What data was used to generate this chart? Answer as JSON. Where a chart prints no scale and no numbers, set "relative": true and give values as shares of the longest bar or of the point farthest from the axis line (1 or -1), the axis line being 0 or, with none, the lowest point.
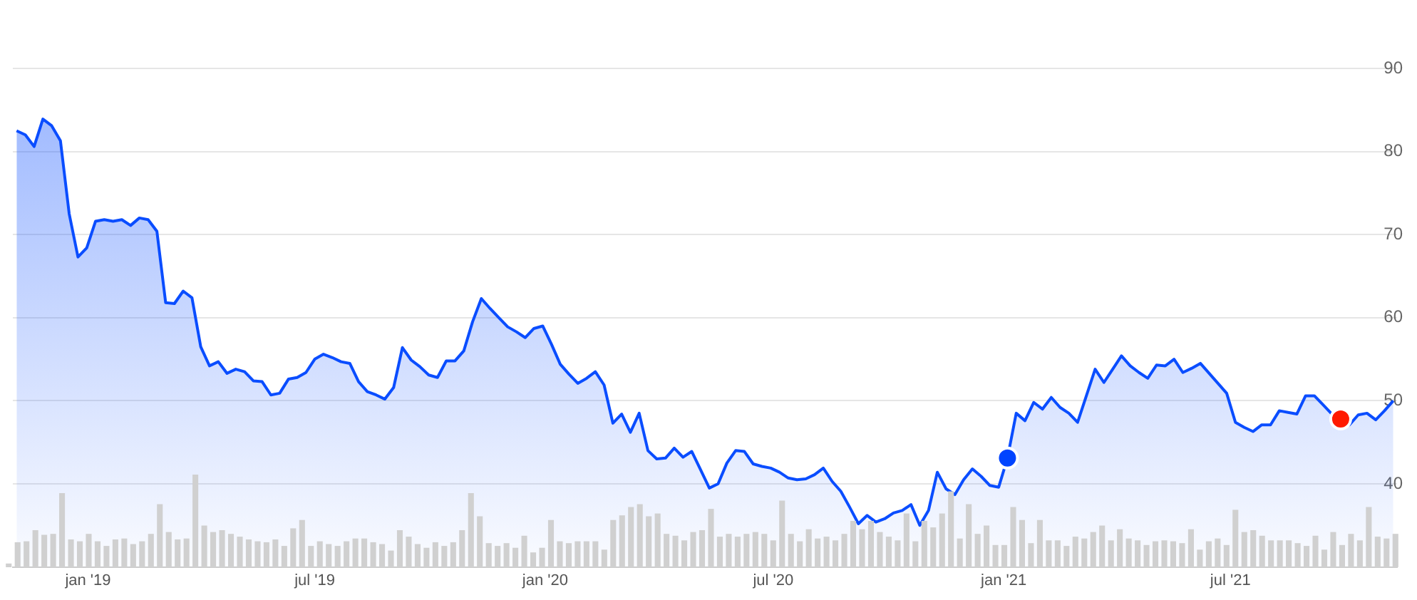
{
  "chart_data": [
    {
      "type": "area",
      "x": [
        "2018-11-05",
        "2018-11-12",
        "2018-11-19",
        "2018-11-26",
        "2018-12-03",
        "2018-12-10",
        "2018-12-17",
        "2018-12-24",
        "2018-12-31",
        "2019-01-07",
        "2019-01-14",
        "2019-01-21",
        "2019-01-28",
        "2019-02-04",
        "2019-02-11",
        "2019-02-18",
        "2019-02-25",
        "2019-03-04",
        "2019-03-11",
        "2019-03-18",
        "2019-03-25",
        "2019-04-01",
        "2019-04-08",
        "2019-04-15",
        "2019-04-22",
        "2019-04-29",
        "2019-05-06",
        "2019-05-13",
        "2019-05-20",
        "2019-05-27",
        "2019-06-03",
        "2019-06-10",
        "2019-06-17",
        "2019-06-24",
        "2019-07-01",
        "2019-07-08",
        "2019-07-15",
        "2019-07-22",
        "2019-07-29",
        "2019-08-05",
        "2019-08-12",
        "2019-08-19",
        "2019-08-26",
        "2019-09-02",
        "2019-09-09",
        "2019-09-16",
        "2019-09-23",
        "2019-09-30",
        "2019-10-07",
        "2019-10-14",
        "2019-10-21",
        "2019-10-28",
        "2019-11-04",
        "2019-11-11",
        "2019-11-18",
        "2019-11-25",
        "2019-12-02",
        "2019-12-09",
        "2019-12-16",
        "2019-12-23",
        "2019-12-30",
        "2020-01-06",
        "2020-01-13",
        "2020-01-20",
        "2020-01-27",
        "2020-02-03",
        "2020-02-10",
        "2020-02-17",
        "2020-02-24",
        "2020-03-02",
        "2020-03-09",
        "2020-03-16",
        "2020-03-23",
        "2020-03-30",
        "2020-04-06",
        "2020-04-13",
        "2020-04-20",
        "2020-04-27",
        "2020-05-04",
        "2020-05-11",
        "2020-05-18",
        "2020-05-25",
        "2020-06-01",
        "2020-06-08",
        "2020-06-15",
        "2020-06-22",
        "2020-06-29",
        "2020-07-06",
        "2020-07-13",
        "2020-07-20",
        "2020-07-27",
        "2020-08-03",
        "2020-08-10",
        "2020-08-17",
        "2020-08-24",
        "2020-08-31",
        "2020-09-07",
        "2020-09-14",
        "2020-09-21",
        "2020-09-28",
        "2020-10-05",
        "2020-10-12",
        "2020-10-19",
        "2020-10-26",
        "2020-11-02",
        "2020-11-09",
        "2020-11-16",
        "2020-11-23",
        "2020-11-30",
        "2020-12-07",
        "2020-12-14",
        "2020-12-21",
        "2020-12-28",
        "2021-01-04",
        "2021-01-11",
        "2021-01-18",
        "2021-01-25",
        "2021-02-01",
        "2021-02-08",
        "2021-02-15",
        "2021-02-22",
        "2021-03-01",
        "2021-03-08",
        "2021-03-15",
        "2021-03-22",
        "2021-03-29",
        "2021-04-05",
        "2021-04-12",
        "2021-04-19",
        "2021-04-26",
        "2021-05-03",
        "2021-05-10",
        "2021-05-17",
        "2021-05-24",
        "2021-05-31",
        "2021-06-07",
        "2021-06-14",
        "2021-06-21",
        "2021-06-28",
        "2021-07-05",
        "2021-07-12",
        "2021-07-19",
        "2021-07-26",
        "2021-08-02",
        "2021-08-09",
        "2021-08-16",
        "2021-08-23",
        "2021-08-30",
        "2021-09-06",
        "2021-09-13",
        "2021-09-20",
        "2021-09-27",
        "2021-10-04",
        "2021-10-11",
        "2021-10-18",
        "2021-10-25",
        "2021-11-01",
        "2021-11-08"
      ],
      "series": [
        {
          "color": "#0a4dff",
          "values": [
            82.5,
            82.0,
            80.6,
            83.9,
            83.1,
            81.3,
            72.5,
            67.3,
            68.4,
            71.6,
            71.8,
            71.6,
            71.8,
            71.1,
            72.0,
            71.8,
            70.4,
            61.8,
            61.7,
            63.2,
            62.4,
            56.5,
            54.2,
            54.7,
            53.3,
            53.8,
            53.5,
            52.4,
            52.3,
            50.7,
            50.9,
            52.6,
            52.8,
            53.4,
            55.0,
            55.6,
            55.2,
            54.7,
            54.5,
            52.3,
            51.1,
            50.7,
            50.2,
            51.6,
            56.4,
            54.9,
            54.1,
            53.1,
            52.8,
            54.8,
            54.8,
            56.0,
            59.5,
            62.3,
            61.1,
            60.0,
            58.9,
            58.3,
            57.6,
            58.7,
            59.0,
            56.8,
            54.4,
            53.2,
            52.1,
            52.7,
            53.5,
            51.9,
            47.3,
            48.4,
            46.2,
            48.5,
            44.0,
            43.0,
            43.1,
            44.3,
            43.2,
            43.9,
            41.7,
            39.5,
            40.0,
            42.5,
            44.0,
            43.9,
            42.4,
            42.1,
            41.9,
            41.4,
            40.7,
            40.5,
            40.6,
            41.1,
            41.9,
            40.3,
            39.1,
            37.2,
            35.2,
            36.2,
            35.4,
            35.8,
            36.5,
            36.8,
            37.5,
            35.0,
            36.8,
            41.4,
            39.4,
            38.7,
            40.5,
            41.8,
            40.9,
            39.8,
            39.6,
            43.1,
            48.5,
            47.6,
            49.8,
            49.0,
            50.4,
            49.2,
            48.5,
            47.4,
            50.6,
            53.8,
            52.2,
            53.8,
            55.4,
            54.2,
            53.4,
            52.7,
            54.3,
            54.2,
            55.0,
            53.4,
            53.9,
            54.5,
            53.3,
            52.1,
            50.9,
            47.4,
            46.8,
            46.3,
            47.1,
            47.1,
            48.8,
            48.6,
            48.4,
            50.6,
            50.6,
            49.5,
            48.4,
            47.8,
            47.1,
            48.3,
            48.5,
            47.7,
            48.8,
            50.0
          ]
        },
        {
          "type": "scatter",
          "marker": "circle",
          "x": [
            "2021-01-04",
            "2021-09-27"
          ],
          "values": [
            43.1,
            47.8
          ],
          "colors": [
            "#0044ff",
            "#ff1a00"
          ]
        }
      ],
      "xlim": [
        "2018-11-02",
        "2021-11-11"
      ],
      "xticks": [
        {
          "value": "2019-01-01",
          "label": "jan '19"
        },
        {
          "value": "2019-07-01",
          "label": "jul '19"
        },
        {
          "value": "2020-01-01",
          "label": "jan '20"
        },
        {
          "value": "2020-07-01",
          "label": "jul '20"
        },
        {
          "value": "2021-01-01",
          "label": "jan '21"
        },
        {
          "value": "2021-07-01",
          "label": "jul '21"
        }
      ],
      "ylim": [
        30,
        90
      ],
      "yticks": [
        40,
        50,
        60,
        70,
        80,
        90
      ],
      "grid": "y",
      "legend": false,
      "marker": "none",
      "line_style": "solid"
    },
    {
      "type": "bar",
      "relative": true,
      "color": "#d0d0d0",
      "legend": false,
      "grid": false,
      "categories": [
        null,
        null,
        null,
        null,
        null,
        null,
        null,
        null,
        null,
        null,
        null,
        null,
        null,
        null,
        null,
        null,
        null,
        null,
        null,
        null,
        null,
        null,
        null,
        null,
        null,
        null,
        null,
        null,
        null,
        null,
        null,
        null,
        null,
        null,
        null,
        null,
        null,
        null,
        null,
        null,
        null,
        null,
        null,
        null,
        null,
        null,
        null,
        null,
        null,
        null,
        null,
        null,
        null,
        null,
        null,
        null,
        null,
        null,
        null,
        null,
        null,
        null,
        null,
        null,
        null,
        null,
        null,
        null,
        null,
        null,
        null,
        null,
        null,
        null,
        null,
        null,
        null,
        null,
        null,
        null,
        null,
        null,
        null,
        null,
        null,
        null,
        null,
        null,
        null,
        null,
        null,
        null,
        null,
        null,
        null,
        null,
        null,
        null,
        null,
        null,
        null,
        null,
        null,
        null,
        null,
        null,
        null,
        null,
        null,
        null,
        null,
        null,
        null,
        null,
        null,
        null,
        null,
        null,
        null,
        null,
        null,
        null,
        null,
        null,
        null,
        null,
        null,
        null,
        null,
        null,
        null,
        null,
        null,
        null,
        null,
        null,
        null,
        null,
        null,
        null,
        null,
        null,
        null,
        null,
        null,
        null,
        null,
        null,
        null,
        null,
        null,
        null,
        null,
        null,
        null,
        null,
        null
      ],
      "values": [
        0.04,
        0.27,
        0.28,
        0.4,
        0.35,
        0.36,
        0.8,
        0.3,
        0.28,
        0.36,
        0.28,
        0.23,
        0.3,
        0.31,
        0.25,
        0.28,
        0.36,
        0.68,
        0.38,
        0.3,
        0.31,
        1,
        0.45,
        0.38,
        0.4,
        0.36,
        0.33,
        0.3,
        0.28,
        0.27,
        0.3,
        0.23,
        0.42,
        0.51,
        0.23,
        0.28,
        0.25,
        0.23,
        0.28,
        0.31,
        0.31,
        0.27,
        0.25,
        0.18,
        0.4,
        0.33,
        0.25,
        0.21,
        0.27,
        0.23,
        0.27,
        0.4,
        0.8,
        0.55,
        0.26,
        0.23,
        0.26,
        0.21,
        0.34,
        0.16,
        0.21,
        0.51,
        0.28,
        0.26,
        0.28,
        0.28,
        0.28,
        0.19,
        0.51,
        0.56,
        0.65,
        0.68,
        0.55,
        0.58,
        0.36,
        0.34,
        0.29,
        0.38,
        0.4,
        0.63,
        0.33,
        0.36,
        0.33,
        0.36,
        0.38,
        0.36,
        0.29,
        0.72,
        0.36,
        0.28,
        0.41,
        0.31,
        0.33,
        0.29,
        0.36,
        0.5,
        0.41,
        0.5,
        0.38,
        0.33,
        0.29,
        0.58,
        0.28,
        0.5,
        0.43,
        0.58,
        0.82,
        0.31,
        0.68,
        0.36,
        0.45,
        0.24,
        0.24,
        0.65,
        0.51,
        0.26,
        0.51,
        0.29,
        0.29,
        0.23,
        0.33,
        0.31,
        0.38,
        0.45,
        0.29,
        0.41,
        0.31,
        0.29,
        0.24,
        0.28,
        0.29,
        0.28,
        0.26,
        0.41,
        0.19,
        0.28,
        0.31,
        0.24,
        0.62,
        0.38,
        0.4,
        0.34,
        0.29,
        0.29,
        0.29,
        0.26,
        0.23,
        0.34,
        0.19,
        0.38,
        0.24,
        0.36,
        0.29,
        0.65,
        0.33,
        0.31,
        0.36
      ]
    }
  ]
}
